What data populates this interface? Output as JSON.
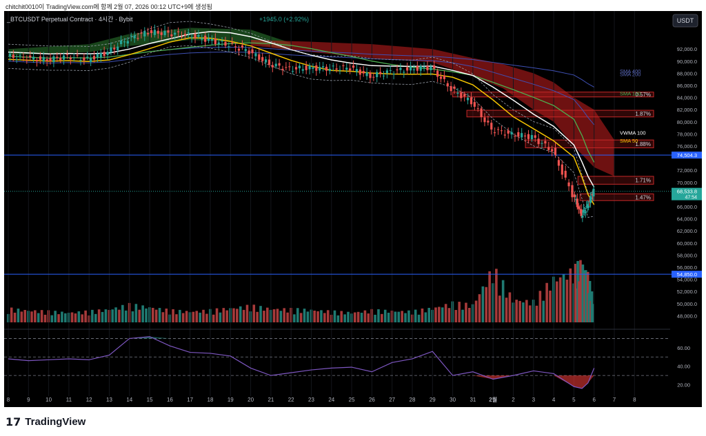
{
  "caption": "chitchit0010이 TradingView.com에 함께 2월 07, 2026 00:12 UTC+9에 생성됨",
  "header": {
    "symbol": "_BTCUSDT Perpetual Contract · 4시간 · Bybit",
    "change": "+1945.0 (+2.92%)"
  },
  "currency_button": "USDT",
  "brand": {
    "logo": "17",
    "name": "TradingView"
  },
  "colors": {
    "up": "#26a69a",
    "down": "#ef5350",
    "vol_up": "#1f7a72",
    "vol_down": "#a63a3a",
    "sma50": "#f5c400",
    "sma120": "#4caf50",
    "sma200": "#3f51b5",
    "sma400": "#3f51b5",
    "vwma": "#ffffff",
    "rsi": "#7e57c2",
    "level_line": "#2962ff",
    "cloud_bear": "#b71c1c",
    "cloud_bull": "#2e7d32"
  },
  "chart_data": {
    "type": "candlestick",
    "title": "_BTCUSDT Perpetual Contract · 4시간 · Bybit",
    "ylim": [
      46000,
      96000
    ],
    "y_ticks": [
      "92,000.0",
      "90,000.0",
      "88,000.0",
      "86,000.0",
      "84,000.0",
      "82,000.0",
      "80,000.0",
      "78,000.0",
      "76,000.0",
      "72,000.0",
      "70,000.0",
      "66,000.0",
      "64,000.0",
      "62,000.0",
      "60,000.0",
      "58,000.0",
      "56,000.0",
      "54,000.0",
      "52,000.0",
      "50,000.0",
      "48,000.0"
    ],
    "x_ticks": [
      "8",
      "9",
      "10",
      "11",
      "12",
      "13",
      "14",
      "15",
      "16",
      "17",
      "18",
      "19",
      "20",
      "21",
      "22",
      "23",
      "24",
      "25",
      "26",
      "27",
      "28",
      "29",
      "30",
      "31",
      "2월",
      "2",
      "3",
      "4",
      "5",
      "6",
      "7",
      "8"
    ],
    "price_labels": [
      {
        "label": "74,504.3",
        "value": 74504.3,
        "kind": "level"
      },
      {
        "label": "54,850.0",
        "value": 54850,
        "kind": "level"
      },
      {
        "label": "68,533.8",
        "sub": "47:54",
        "value": 68533.8,
        "kind": "last"
      }
    ],
    "indicator_labels": [
      {
        "name": "SMA 400",
        "value": 88400
      },
      {
        "name": "SMA 200",
        "value": 87900
      },
      {
        "name": "SMA 120",
        "value": 84700
      },
      {
        "name": "VWMA 100",
        "value": 78200
      },
      {
        "name": "SMA 50",
        "value": 76900
      }
    ],
    "zone_boxes": [
      {
        "label": "0.57%",
        "x_from": 30.0,
        "x_to": 7.2,
        "top": 84900,
        "bottom": 84100
      },
      {
        "label": "1.87%",
        "x_from": 30.7,
        "x_to": 7.2,
        "top": 81900,
        "bottom": 80800
      },
      {
        "label": "1.88%",
        "x_from": 33.6,
        "x_to": 7.2,
        "top": 77000,
        "bottom": 75700
      },
      {
        "label": "1.71%",
        "x_from": 36.2,
        "x_to": 7.2,
        "top": 71000,
        "bottom": 69700
      },
      {
        "label": "1.47%",
        "x_from": 36.3,
        "x_to": 7.2,
        "top": 68100,
        "bottom": 67000
      }
    ],
    "price_series": {
      "x": [
        8,
        9,
        10,
        11,
        12,
        13,
        14,
        15,
        16,
        17,
        18,
        19,
        20,
        21,
        22,
        23,
        24,
        25,
        26,
        27,
        28,
        29,
        30,
        31,
        32,
        33,
        34,
        35,
        36,
        36.4,
        36.7,
        37
      ],
      "close": [
        90800,
        90500,
        90200,
        90800,
        90300,
        91500,
        93700,
        94800,
        94600,
        94300,
        93500,
        92700,
        91600,
        89500,
        88700,
        88900,
        88800,
        88900,
        87500,
        88300,
        88700,
        89000,
        85400,
        83300,
        78700,
        77900,
        77500,
        75300,
        68000,
        64600,
        66100,
        68533.8
      ]
    },
    "volume_series": {
      "x": [
        8,
        9,
        10,
        11,
        12,
        13,
        14,
        15,
        16,
        17,
        18,
        19,
        20,
        21,
        22,
        23,
        24,
        25,
        26,
        27,
        28,
        29,
        30,
        31,
        32,
        33,
        34,
        35,
        36,
        36.4,
        36.7,
        37
      ],
      "values": [
        2.5,
        2.2,
        2.0,
        1.8,
        2.0,
        2.4,
        3.2,
        2.8,
        2.2,
        2.0,
        2.2,
        2.6,
        3.0,
        2.5,
        2.4,
        2.3,
        2.0,
        1.8,
        2.2,
        2.1,
        2.0,
        2.6,
        3.5,
        3.2,
        9.8,
        4.2,
        3.8,
        8.0,
        9.5,
        10.8,
        8.5,
        3.5
      ]
    },
    "rsi": {
      "ylim": [
        10,
        80
      ],
      "y_ticks": [
        "60.00",
        "40.00",
        "20.00"
      ],
      "levels": [
        70,
        50,
        30
      ],
      "x": [
        8,
        9,
        10,
        11,
        12,
        13,
        14,
        15,
        16,
        17,
        18,
        19,
        20,
        21,
        22,
        23,
        24,
        25,
        26,
        27,
        28,
        29,
        30,
        31,
        32,
        33,
        34,
        35,
        36,
        36.4,
        36.7,
        37
      ],
      "values": [
        48,
        46,
        47,
        48,
        47,
        52,
        70,
        72,
        62,
        55,
        54,
        51,
        38,
        30,
        33,
        36,
        38,
        39,
        34,
        44,
        48,
        56,
        30,
        34,
        26,
        30,
        35,
        32,
        18,
        16,
        22,
        38
      ]
    }
  }
}
